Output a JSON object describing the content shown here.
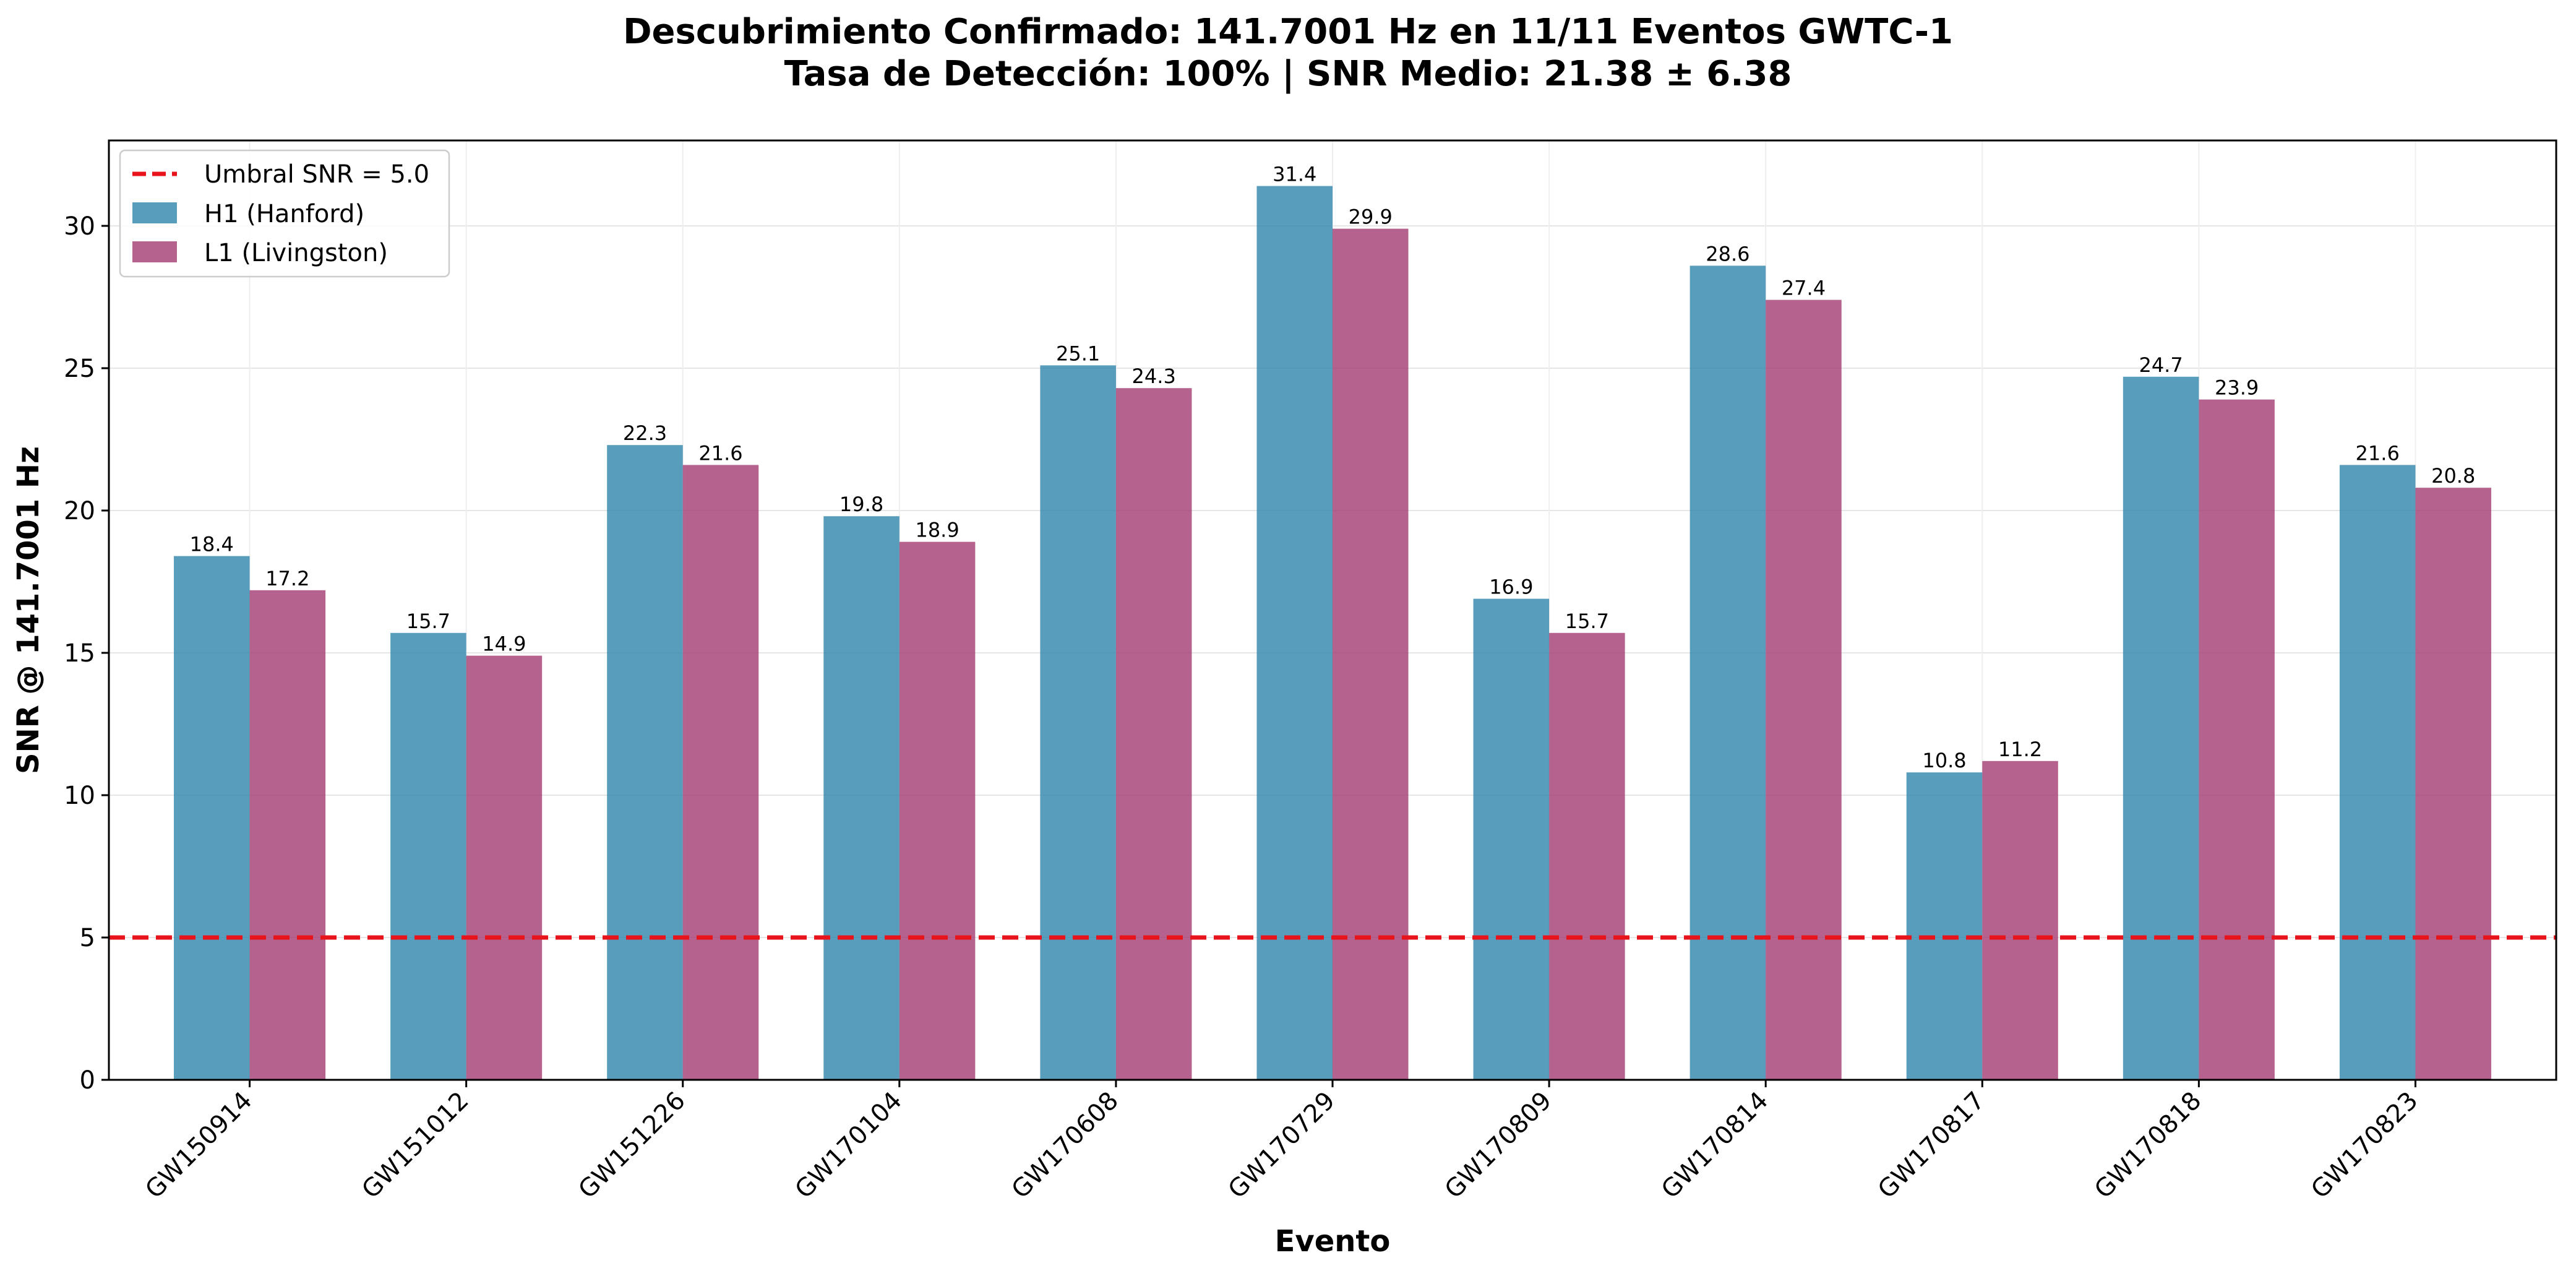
{
  "chart_data": {
    "type": "bar",
    "title_line1": "Descubrimiento Confirmado: 141.7001 Hz en 11/11 Eventos GWTC-1",
    "title_line2": "Tasa de Detección: 100% | SNR Medio: 21.38 ± 6.38",
    "xlabel": "Evento",
    "ylabel": "SNR @ 141.7001 Hz",
    "ylim": [
      0,
      33
    ],
    "yticks": [
      0,
      5,
      10,
      15,
      20,
      25,
      30
    ],
    "grid": true,
    "legend_position": "top-left",
    "categories": [
      "GW150914",
      "GW151012",
      "GW151226",
      "GW170104",
      "GW170608",
      "GW170729",
      "GW170809",
      "GW170814",
      "GW170817",
      "GW170818",
      "GW170823"
    ],
    "series": [
      {
        "name": "H1 (Hanford)",
        "color": "#2E86AB",
        "values": [
          18.4,
          15.7,
          22.3,
          19.8,
          25.1,
          31.4,
          16.9,
          28.6,
          10.8,
          24.7,
          21.6
        ]
      },
      {
        "name": "L1 (Livingston)",
        "color": "#A23B72",
        "values": [
          17.2,
          14.9,
          21.6,
          18.9,
          24.3,
          29.9,
          15.7,
          27.4,
          11.2,
          23.9,
          20.8
        ]
      }
    ],
    "threshold": {
      "label": "Umbral SNR = 5.0",
      "value": 5.0,
      "color": "#E8141C",
      "style": "dashed"
    }
  }
}
